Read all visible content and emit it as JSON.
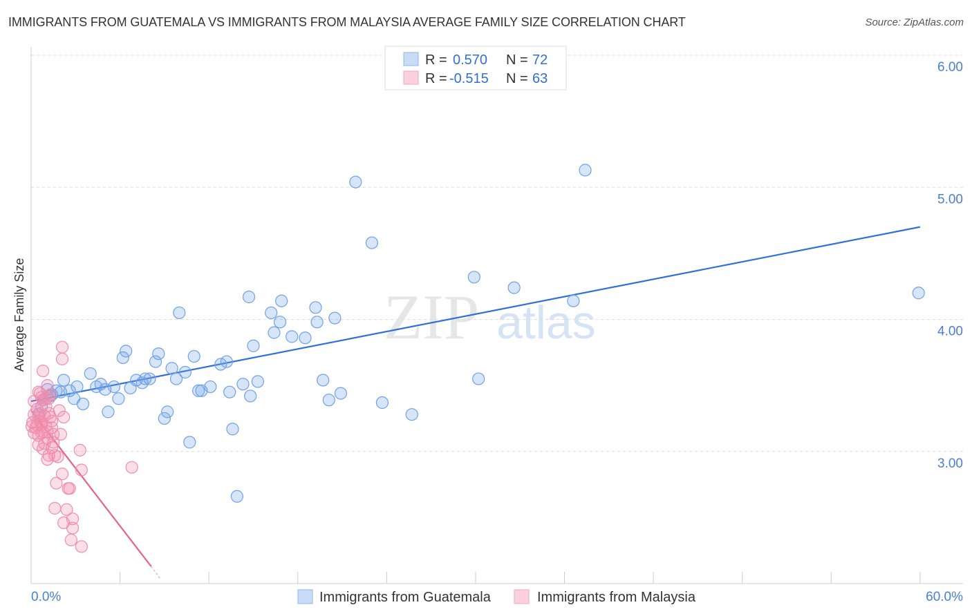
{
  "title": "IMMIGRANTS FROM GUATEMALA VS IMMIGRANTS FROM MALAYSIA AVERAGE FAMILY SIZE CORRELATION CHART",
  "source": "Source: ZipAtlas.com",
  "watermark": "ZIPatlas",
  "chart_data": {
    "type": "scatter",
    "title": "IMMIGRANTS FROM GUATEMALA VS IMMIGRANTS FROM MALAYSIA AVERAGE FAMILY SIZE CORRELATION CHART",
    "xlabel": "",
    "ylabel": "Average Family Size",
    "xlim": [
      0,
      62.9
    ],
    "ylim": [
      2.0,
      6.0
    ],
    "x_tick_labels": [
      "0.0%",
      "60.0%"
    ],
    "y_ticks": [
      3,
      4,
      5,
      6
    ],
    "y_tick_labels": [
      "3.00",
      "4.00",
      "5.00",
      "6.00"
    ],
    "grid": true,
    "legend_position": "top-center",
    "series": [
      {
        "name": "Immigrants from Guatemala",
        "color": "#6fa0e8",
        "line_color": "#2f6fd6",
        "R": "0.570",
        "N": "72",
        "trend": [
          [
            0,
            3.38
          ],
          [
            60,
            4.7
          ]
        ],
        "points": [
          [
            21.9,
            5.04
          ],
          [
            37.4,
            5.13
          ],
          [
            23.0,
            4.58
          ],
          [
            29.9,
            4.32
          ],
          [
            32.6,
            4.24
          ],
          [
            36.6,
            4.14
          ],
          [
            59.9,
            4.2
          ],
          [
            14.7,
            4.17
          ],
          [
            16.9,
            4.14
          ],
          [
            10.0,
            4.05
          ],
          [
            16.2,
            4.05
          ],
          [
            19.2,
            4.09
          ],
          [
            16.8,
            3.98
          ],
          [
            19.3,
            3.98
          ],
          [
            20.5,
            4.01
          ],
          [
            16.4,
            3.9
          ],
          [
            17.6,
            3.87
          ],
          [
            18.5,
            3.86
          ],
          [
            15.0,
            3.8
          ],
          [
            6.4,
            3.76
          ],
          [
            6.2,
            3.71
          ],
          [
            8.6,
            3.74
          ],
          [
            8.4,
            3.68
          ],
          [
            11.0,
            3.72
          ],
          [
            12.8,
            3.66
          ],
          [
            13.2,
            3.68
          ],
          [
            9.5,
            3.63
          ],
          [
            10.4,
            3.6
          ],
          [
            2.2,
            3.54
          ],
          [
            4.0,
            3.59
          ],
          [
            3.1,
            3.49
          ],
          [
            4.7,
            3.51
          ],
          [
            4.4,
            3.49
          ],
          [
            5.6,
            3.49
          ],
          [
            5.0,
            3.47
          ],
          [
            7.1,
            3.54
          ],
          [
            7.7,
            3.55
          ],
          [
            8.0,
            3.55
          ],
          [
            7.5,
            3.52
          ],
          [
            9.8,
            3.55
          ],
          [
            6.7,
            3.48
          ],
          [
            12.1,
            3.49
          ],
          [
            11.3,
            3.46
          ],
          [
            11.5,
            3.46
          ],
          [
            14.3,
            3.51
          ],
          [
            15.3,
            3.53
          ],
          [
            13.4,
            3.45
          ],
          [
            14.8,
            3.42
          ],
          [
            19.7,
            3.54
          ],
          [
            20.9,
            3.44
          ],
          [
            20.1,
            3.39
          ],
          [
            23.7,
            3.37
          ],
          [
            25.7,
            3.28
          ],
          [
            30.2,
            3.55
          ],
          [
            5.9,
            3.4
          ],
          [
            3.5,
            3.36
          ],
          [
            2.9,
            3.4
          ],
          [
            2.6,
            3.46
          ],
          [
            2.0,
            3.45
          ],
          [
            1.4,
            3.43
          ],
          [
            1.3,
            3.42
          ],
          [
            1.1,
            3.47
          ],
          [
            0.8,
            3.39
          ],
          [
            1.7,
            3.46
          ],
          [
            5.2,
            3.3
          ],
          [
            9.2,
            3.3
          ],
          [
            9.0,
            3.25
          ],
          [
            13.6,
            3.17
          ],
          [
            10.7,
            3.07
          ],
          [
            13.9,
            2.66
          ],
          [
            0.5,
            3.28
          ],
          [
            0.7,
            3.34
          ]
        ]
      },
      {
        "name": "Immigrants from Malaysia",
        "color": "#f08cad",
        "line_color": "#e8608c",
        "R": "-0.515",
        "N": "63",
        "trend": [
          [
            0,
            3.31
          ],
          [
            8.1,
            2.13
          ]
        ],
        "trend_dashed_to": [
          8.7,
          2.04
        ],
        "points": [
          [
            2.1,
            3.79
          ],
          [
            2.1,
            3.7
          ],
          [
            0.8,
            3.61
          ],
          [
            1.1,
            3.5
          ],
          [
            0.5,
            3.45
          ],
          [
            0.8,
            3.39
          ],
          [
            1.2,
            3.4
          ],
          [
            0.7,
            3.41
          ],
          [
            1.0,
            3.34
          ],
          [
            0.2,
            3.28
          ],
          [
            0.5,
            3.26
          ],
          [
            0.6,
            3.23
          ],
          [
            0.1,
            3.22
          ],
          [
            0.3,
            3.18
          ],
          [
            0.7,
            3.2
          ],
          [
            1.0,
            3.19
          ],
          [
            1.3,
            3.26
          ],
          [
            1.4,
            3.23
          ],
          [
            2.2,
            3.26
          ],
          [
            0.2,
            3.14
          ],
          [
            0.5,
            3.12
          ],
          [
            0.8,
            3.15
          ],
          [
            1.1,
            3.1
          ],
          [
            1.5,
            3.13
          ],
          [
            2.0,
            3.13
          ],
          [
            0.9,
            3.06
          ],
          [
            0.5,
            3.05
          ],
          [
            1.4,
            3.03
          ],
          [
            1.6,
            2.97
          ],
          [
            1.2,
            2.97
          ],
          [
            1.1,
            2.94
          ],
          [
            1.8,
            2.96
          ],
          [
            3.3,
            3.01
          ],
          [
            6.8,
            2.88
          ],
          [
            3.4,
            2.86
          ],
          [
            2.1,
            2.83
          ],
          [
            1.7,
            2.76
          ],
          [
            2.5,
            2.72
          ],
          [
            2.6,
            2.72
          ],
          [
            1.6,
            2.57
          ],
          [
            2.4,
            2.56
          ],
          [
            2.8,
            2.49
          ],
          [
            2.2,
            2.46
          ],
          [
            2.8,
            2.42
          ],
          [
            2.7,
            2.33
          ],
          [
            3.4,
            2.28
          ],
          [
            0.2,
            3.38
          ],
          [
            0.4,
            3.32
          ],
          [
            0.6,
            3.29
          ],
          [
            0.9,
            3.27
          ],
          [
            0.05,
            3.19
          ],
          [
            1.2,
            3.29
          ],
          [
            1.4,
            3.18
          ],
          [
            1.5,
            3.07
          ],
          [
            0.6,
            3.44
          ],
          [
            1.0,
            3.4
          ],
          [
            0.7,
            3.22
          ],
          [
            0.4,
            3.2
          ],
          [
            1.1,
            3.15
          ],
          [
            1.3,
            3.43
          ],
          [
            1.9,
            3.31
          ],
          [
            0.7,
            3.14
          ],
          [
            0.8,
            3.02
          ]
        ]
      }
    ]
  },
  "legend": {
    "r_label": "R =",
    "n_label": "N ="
  }
}
